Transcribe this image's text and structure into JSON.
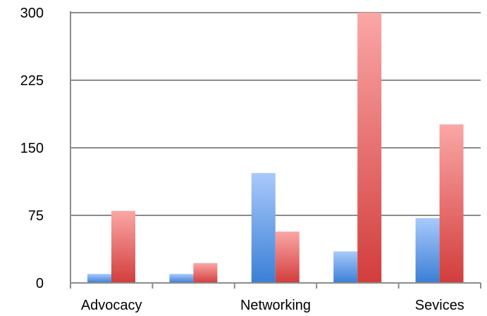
{
  "chart_data": {
    "type": "bar",
    "categories": [
      "Advocacy",
      "",
      "Networking",
      "",
      "Sevices"
    ],
    "series": [
      {
        "values": [
          10,
          10,
          122,
          35,
          72
        ],
        "color_top": "#a9c9fb",
        "color_bottom": "#3a7fd6"
      },
      {
        "values": [
          80,
          22,
          57,
          300,
          176
        ],
        "color_top": "#faa7a6",
        "color_bottom": "#d23d3c"
      }
    ],
    "ylim": [
      0,
      300
    ],
    "yticks": [
      0,
      75,
      150,
      225,
      300
    ],
    "grid": true,
    "legend": "none"
  }
}
